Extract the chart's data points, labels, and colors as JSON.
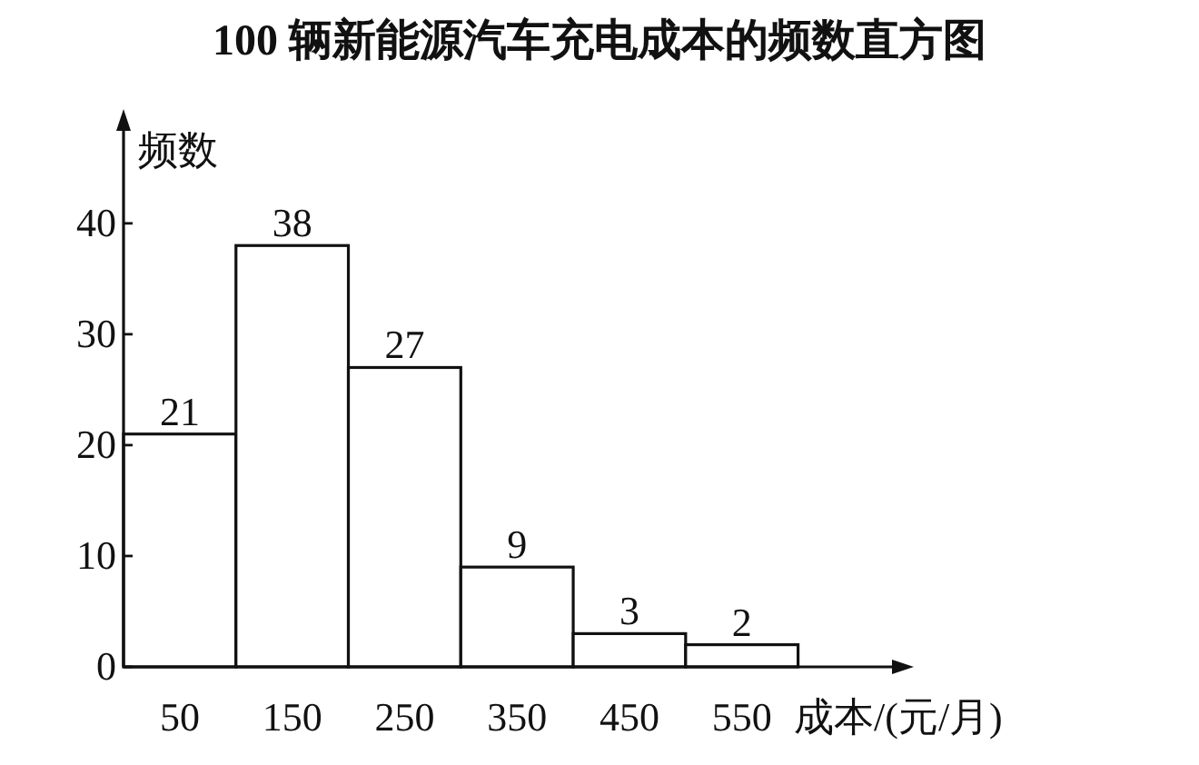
{
  "chart_data": {
    "type": "histogram",
    "title": "100 辆新能源汽车充电成本的频数直方图",
    "xlabel": "成本/(元/月)",
    "ylabel": "频数",
    "bins": [
      0,
      100,
      200,
      300,
      400,
      500,
      600
    ],
    "values": [
      21,
      38,
      27,
      9,
      3,
      2
    ],
    "xlim": [
      0,
      690
    ],
    "ylim": [
      0,
      49
    ],
    "xticks": [
      50,
      150,
      250,
      350,
      450,
      550
    ],
    "yticks": [
      0,
      10,
      20,
      30,
      40
    ],
    "data_labels": true,
    "color": "#ffffff"
  }
}
